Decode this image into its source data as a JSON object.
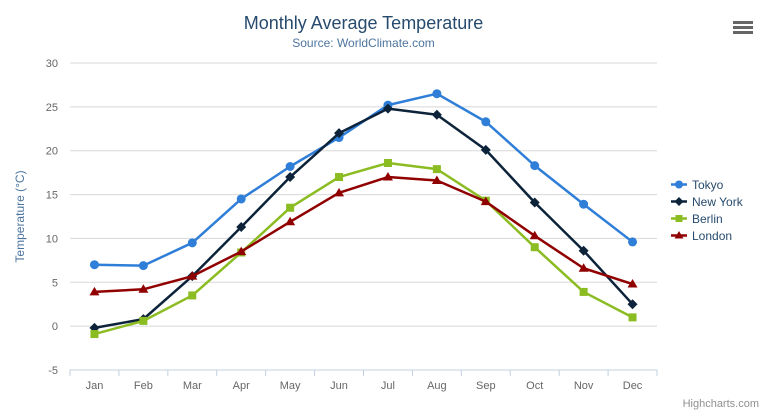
{
  "chart_data": {
    "type": "line",
    "title": "Monthly Average Temperature",
    "subtitle": "Source: WorldClimate.com",
    "categories": [
      "Jan",
      "Feb",
      "Mar",
      "Apr",
      "May",
      "Jun",
      "Jul",
      "Aug",
      "Sep",
      "Oct",
      "Nov",
      "Dec"
    ],
    "xlabel": "",
    "ylabel": "Temperature (°C)",
    "ylim": [
      -5,
      30
    ],
    "ytick_step": 5,
    "grid": true,
    "legend_position": "right",
    "series": [
      {
        "name": "Tokyo",
        "color": "#2f7ed8",
        "marker": "circle",
        "values": [
          7.0,
          6.9,
          9.5,
          14.5,
          18.2,
          21.5,
          25.2,
          26.5,
          23.3,
          18.3,
          13.9,
          9.6
        ]
      },
      {
        "name": "New York",
        "color": "#0d233a",
        "marker": "diamond",
        "values": [
          -0.2,
          0.8,
          5.7,
          11.3,
          17.0,
          22.0,
          24.8,
          24.1,
          20.1,
          14.1,
          8.6,
          2.5
        ]
      },
      {
        "name": "Berlin",
        "color": "#8bbc21",
        "marker": "square",
        "values": [
          -0.9,
          0.6,
          3.5,
          8.4,
          13.5,
          17.0,
          18.6,
          17.9,
          14.3,
          9.0,
          3.9,
          1.0
        ]
      },
      {
        "name": "London",
        "color": "#910000",
        "marker": "triangle",
        "values": [
          3.9,
          4.2,
          5.7,
          8.5,
          11.9,
          15.2,
          17.0,
          16.6,
          14.2,
          10.3,
          6.6,
          4.8
        ]
      }
    ]
  },
  "credits": "Highcharts.com",
  "icons": {
    "context_menu": "hamburger-menu"
  },
  "colors": {
    "background": "#ffffff",
    "title": "#274b6d",
    "subtitle": "#4d759e",
    "axis_label": "#666666",
    "axis_title": "#4d759e",
    "axis_line": "#c0d0e0",
    "gridline": "#d8d8d8",
    "legend_text": "#274b6d",
    "credits": "#909090",
    "menu_icon": "#666666"
  }
}
